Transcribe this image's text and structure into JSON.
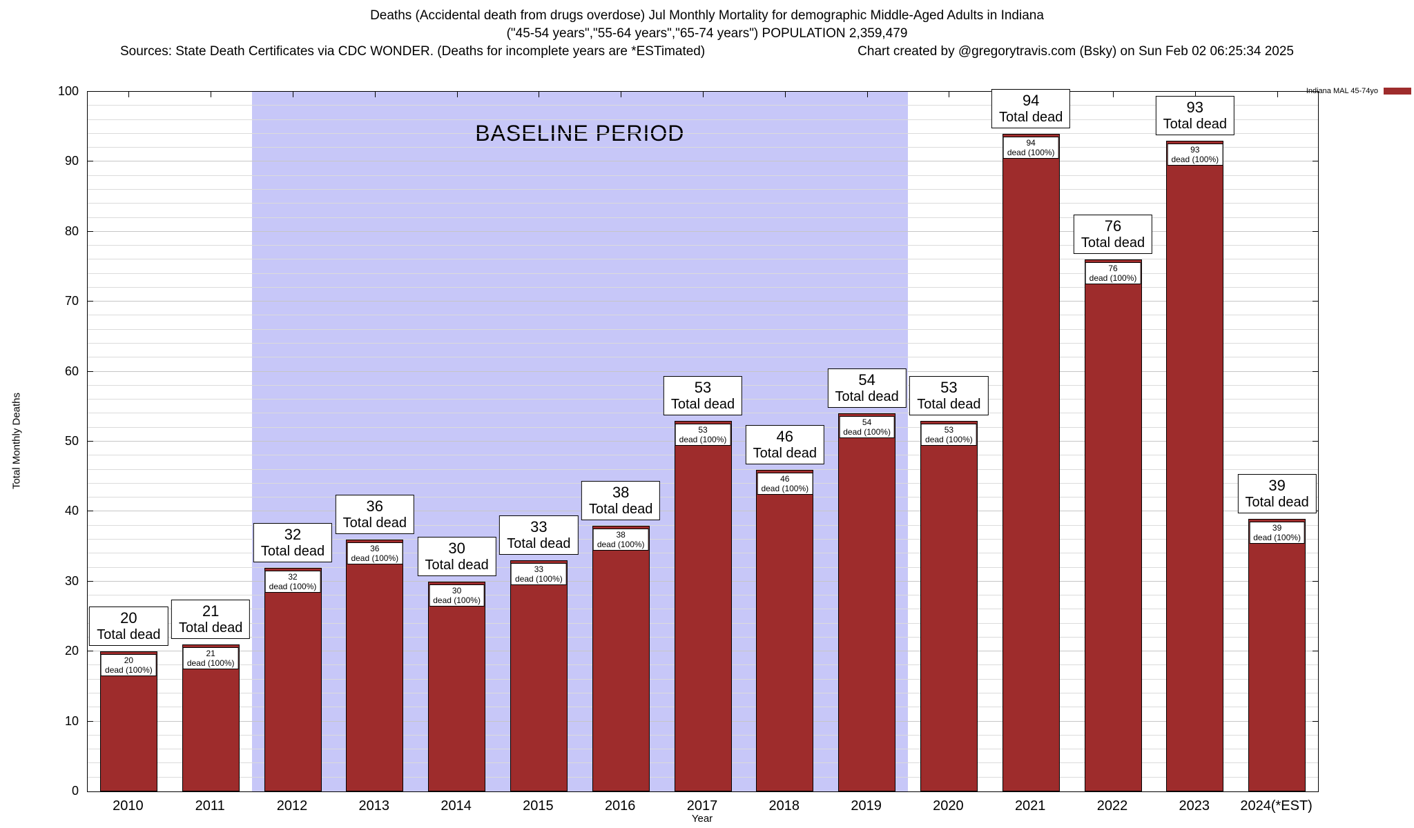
{
  "header": {
    "title_line1": "Deaths (Accidental death from drugs overdose) Jul Monthly Mortality for demographic Middle-Aged Adults in Indiana",
    "title_line2": "(\"45-54 years\",\"55-64 years\",\"65-74 years\") POPULATION 2,359,479",
    "title_line3_left": "Sources: State Death Certificates via CDC WONDER. (Deaths for incomplete years are *ESTimated)",
    "title_line3_right": "Chart created by @gregorytravis.com (Bsky) on Sun Feb 02 06:25:34 2025"
  },
  "chart_data": {
    "type": "bar",
    "title": "Deaths (Accidental death from drugs overdose) Jul Monthly Mortality for demographic Middle-Aged Adults in Indiana",
    "categories": [
      "2010",
      "2011",
      "2012",
      "2013",
      "2014",
      "2015",
      "2016",
      "2017",
      "2018",
      "2019",
      "2020",
      "2021",
      "2022",
      "2023",
      "2024(*EST)"
    ],
    "values": [
      20,
      21,
      32,
      36,
      30,
      33,
      38,
      53,
      46,
      54,
      53,
      94,
      76,
      93,
      39
    ],
    "outer_label_suffix": "Total dead",
    "inner_label_suffix": "dead (100%)",
    "xlabel": "Year",
    "ylabel": "Total Monthly Deaths",
    "ylim": [
      0,
      100
    ],
    "ytick_step": 10,
    "minor_grid_step": 2,
    "grid": true,
    "bar_color": "#9e2c2c",
    "baseline": {
      "label": "BASELINE PERIOD",
      "start_category": "2012",
      "end_category": "2019",
      "start_index": 2,
      "end_index": 9,
      "color": "#c7c7f8"
    },
    "legend": {
      "position": "top-right",
      "label": "Indiana MAL 45-74yo",
      "color": "#9e2c2c"
    }
  }
}
